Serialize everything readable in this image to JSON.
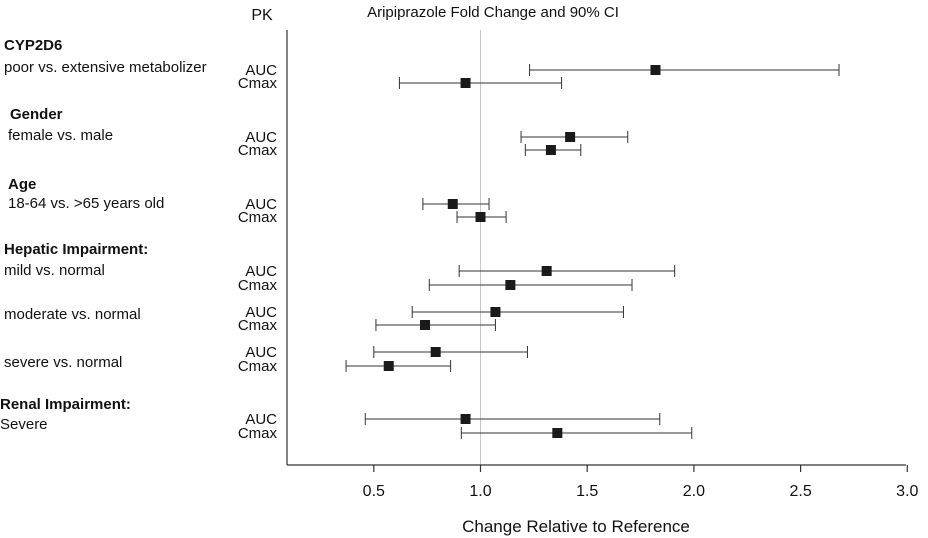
{
  "chart_data": {
    "type": "forest",
    "title": "Aripiprazole Fold Change and 90% CI",
    "column_header": "PK",
    "xlabel": "Change Relative to Reference",
    "xlim": [
      0.1,
      3.0
    ],
    "xticks": [
      0.5,
      1.0,
      1.5,
      2.0,
      2.5,
      3.0
    ],
    "xtick_labels": [
      "0.5",
      "1.0",
      "1.5",
      "2.0",
      "2.5",
      "3.0"
    ],
    "reference_line": 1.0,
    "groups": [
      {
        "header": "CYP2D6",
        "comparisons": [
          {
            "label": "poor vs. extensive metabolizer",
            "rows": [
              {
                "pk": "AUC",
                "estimate": 1.82,
                "lower": 1.23,
                "upper": 2.68
              },
              {
                "pk": "Cmax",
                "estimate": 0.93,
                "lower": 0.62,
                "upper": 1.38
              }
            ]
          }
        ]
      },
      {
        "header": "Gender",
        "comparisons": [
          {
            "label": "female vs. male",
            "rows": [
              {
                "pk": "AUC",
                "estimate": 1.42,
                "lower": 1.19,
                "upper": 1.69
              },
              {
                "pk": "Cmax",
                "estimate": 1.33,
                "lower": 1.21,
                "upper": 1.47
              }
            ]
          }
        ]
      },
      {
        "header": "Age",
        "comparisons": [
          {
            "label": "18-64 vs. >65 years old",
            "rows": [
              {
                "pk": "AUC",
                "estimate": 0.87,
                "lower": 0.73,
                "upper": 1.04
              },
              {
                "pk": "Cmax",
                "estimate": 1.0,
                "lower": 0.89,
                "upper": 1.12
              }
            ]
          }
        ]
      },
      {
        "header": "Hepatic Impairment:",
        "comparisons": [
          {
            "label": "mild vs. normal",
            "rows": [
              {
                "pk": "AUC",
                "estimate": 1.31,
                "lower": 0.9,
                "upper": 1.91
              },
              {
                "pk": "Cmax",
                "estimate": 1.14,
                "lower": 0.76,
                "upper": 1.71
              }
            ]
          },
          {
            "label": "moderate vs. normal",
            "rows": [
              {
                "pk": "AUC",
                "estimate": 1.07,
                "lower": 0.68,
                "upper": 1.67
              },
              {
                "pk": "Cmax",
                "estimate": 0.74,
                "lower": 0.51,
                "upper": 1.07
              }
            ]
          },
          {
            "label": "severe vs. normal",
            "rows": [
              {
                "pk": "AUC",
                "estimate": 0.79,
                "lower": 0.5,
                "upper": 1.22
              },
              {
                "pk": "Cmax",
                "estimate": 0.57,
                "lower": 0.37,
                "upper": 0.86
              }
            ]
          }
        ]
      },
      {
        "header": "Renal Impairment:",
        "comparisons": [
          {
            "label": "Severe",
            "rows": [
              {
                "pk": "AUC",
                "estimate": 0.93,
                "lower": 0.46,
                "upper": 1.84
              },
              {
                "pk": "Cmax",
                "estimate": 1.36,
                "lower": 0.91,
                "upper": 1.99
              }
            ]
          }
        ]
      }
    ],
    "colors": {
      "marker": "#1a1a1a",
      "line": "#333333",
      "axis": "#333333",
      "reference": "#c8c8c8"
    }
  }
}
